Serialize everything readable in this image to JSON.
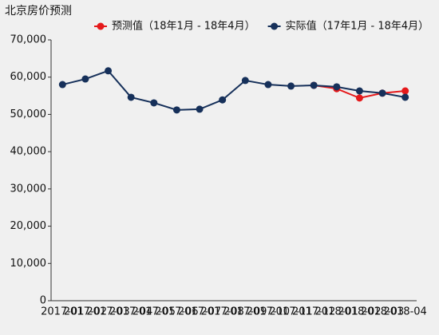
{
  "chart_data": {
    "type": "line",
    "title": "北京房价预测",
    "categories": [
      "2017-01",
      "2017-02",
      "2017-03",
      "2017-04",
      "2017-05",
      "2017-06",
      "2017-07",
      "2017-08",
      "2017-09",
      "2017-10",
      "2017-11",
      "2017-12",
      "2018-01",
      "2018-02",
      "2018-03",
      "2018-04"
    ],
    "series": [
      {
        "name": "预测值（18年1月 - 18年4月）",
        "color": "#e5191b",
        "values": [
          null,
          null,
          null,
          null,
          null,
          null,
          null,
          null,
          null,
          null,
          null,
          57800,
          56900,
          54400,
          55700,
          56300
        ]
      },
      {
        "name": "实际值（17年1月 - 18年4月）",
        "color": "#16305a",
        "values": [
          58000,
          59500,
          61700,
          54600,
          53100,
          51200,
          51400,
          53900,
          59100,
          58000,
          57600,
          57800,
          57400,
          56300,
          55700,
          54600
        ]
      }
    ],
    "ylim": [
      0,
      70000
    ],
    "yticks": [
      0,
      {
        "value": 10000,
        "label": "10,000"
      },
      {
        "value": 20000,
        "label": "20,000"
      },
      {
        "value": 30000,
        "label": "30,000"
      },
      {
        "value": 40000,
        "label": "40,000"
      },
      {
        "value": 50000,
        "label": "50,000"
      },
      {
        "value": 60000,
        "label": "60,000"
      },
      {
        "value": 70000,
        "label": "70,000"
      }
    ]
  }
}
